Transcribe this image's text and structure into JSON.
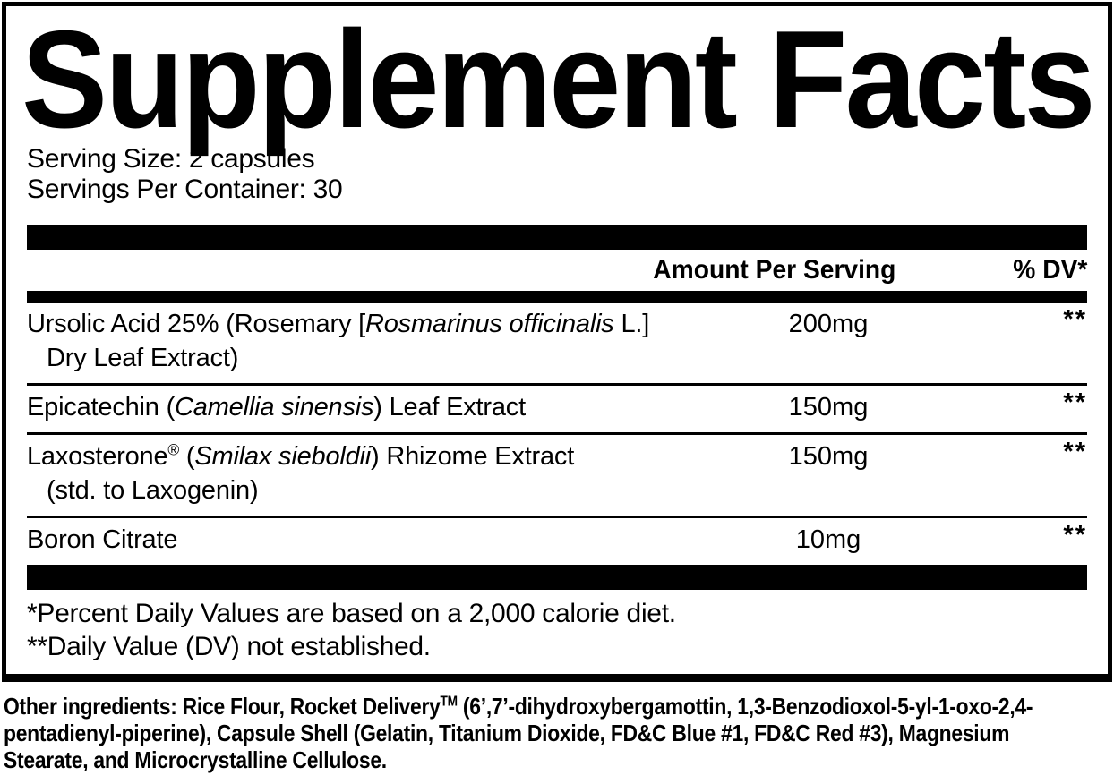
{
  "panel": {
    "title": "Supplement Facts",
    "serving_size": "Serving Size: 2 capsules",
    "servings_per_container": "Servings Per Container: 30",
    "header": {
      "amount_label": "Amount Per Serving",
      "dv_label": "% DV*"
    },
    "rows": [
      {
        "name_line1": [
          {
            "t": "Ursolic Acid 25% (Rosemary ["
          },
          {
            "t": "Rosmarinus officinalis",
            "i": true
          },
          {
            "t": " L.]"
          }
        ],
        "name_line2": "Dry Leaf Extract)",
        "amount": "200mg",
        "dv": "**"
      },
      {
        "name_line1": [
          {
            "t": "Epicatechin ("
          },
          {
            "t": "Camellia sinensis",
            "i": true
          },
          {
            "t": ") Leaf Extract"
          }
        ],
        "amount": "150mg",
        "dv": "**"
      },
      {
        "name_line1": [
          {
            "t": "Laxosterone"
          },
          {
            "t": "®",
            "sup": true
          },
          {
            "t": " ("
          },
          {
            "t": "Smilax sieboldii",
            "i": true
          },
          {
            "t": ") Rhizome Extract"
          }
        ],
        "name_line2": "(std. to Laxogenin)",
        "amount": "150mg",
        "dv": "**"
      },
      {
        "name_line1": [
          {
            "t": "Boron Citrate"
          }
        ],
        "amount": "10mg",
        "dv": "**"
      }
    ],
    "footnotes": [
      "*Percent Daily Values are based on a 2,000 calorie diet.",
      "**Daily Value (DV) not established."
    ]
  },
  "other_ingredients": [
    {
      "t": "Other ingredients: Rice Flour, Rocket Delivery"
    },
    {
      "t": "TM",
      "sup": true
    },
    {
      "t": " (6’,7’-dihydroxybergamottin, 1,3-Benzodioxol-5-yl-1-oxo-2,4-pentadienyl-piperine), Capsule Shell (Gelatin, Titanium Dioxide, FD&C Blue #1, FD&C Red #3), Magnesium Stearate, and Microcrystalline Cellulose."
    }
  ],
  "colors": {
    "ink": "#000000",
    "background": "#ffffff"
  }
}
